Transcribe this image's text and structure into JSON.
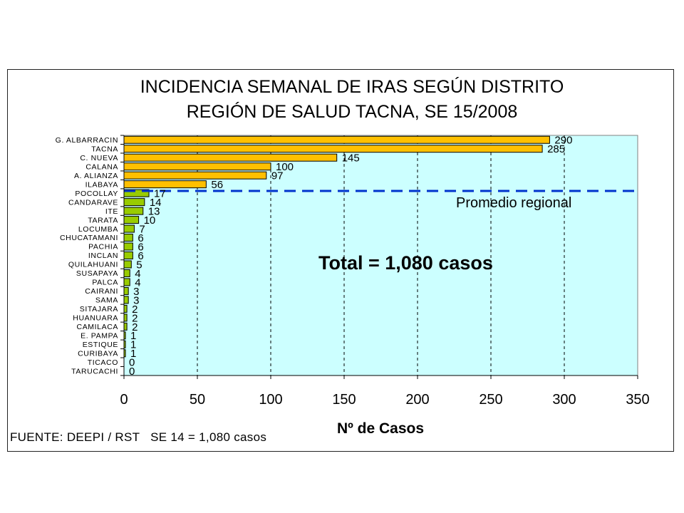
{
  "colors": {
    "above_average": "#FFC000",
    "below_average": "#99CC00",
    "plot_background": "#CCFFFF",
    "average_line": "#0033CC",
    "bar_outline": "#000000"
  },
  "chart_data": {
    "type": "bar",
    "orientation": "horizontal",
    "title": "INCIDENCIA SEMANAL DE IRAS SEGÚN DISTRITO",
    "subtitle": "REGIÓN DE SALUD TACNA, SE 15/2008",
    "xlabel": "Nº de Casos",
    "ylabel": "",
    "xlim": [
      0,
      350
    ],
    "xticks": [
      0,
      50,
      100,
      150,
      200,
      250,
      300,
      350
    ],
    "grid": true,
    "data_labels": true,
    "categories": [
      "G. ALBARRACIN",
      "TACNA",
      "C. NUEVA",
      "CALANA",
      "A. ALIANZA",
      "ILABAYA",
      "POCOLLAY",
      "CANDARAVE",
      "ITE",
      "TARATA",
      "LOCUMBA",
      "CHUCATAMANI",
      "PACHIA",
      "INCLAN",
      "QUILAHUANI",
      "SUSAPAYA",
      "PALCA",
      "CAIRANI",
      "SAMA",
      "SITAJARA",
      "HUANUARA",
      "CAMILACA",
      "E. PAMPA",
      "ESTIQUE",
      "CURIBAYA",
      "TICACO",
      "TARUCACHI"
    ],
    "values": [
      290,
      285,
      145,
      100,
      97,
      56,
      17,
      14,
      13,
      10,
      7,
      6,
      6,
      6,
      5,
      4,
      4,
      3,
      3,
      2,
      2,
      2,
      1,
      1,
      1,
      0,
      0
    ],
    "above_average_count": 6,
    "reference_line": {
      "label": "Promedio regional"
    },
    "annotations": {
      "total": "Total = 1,080 casos"
    },
    "source": "FUENTE: DEEPI / RST   SE 14 = 1,080 casos"
  }
}
